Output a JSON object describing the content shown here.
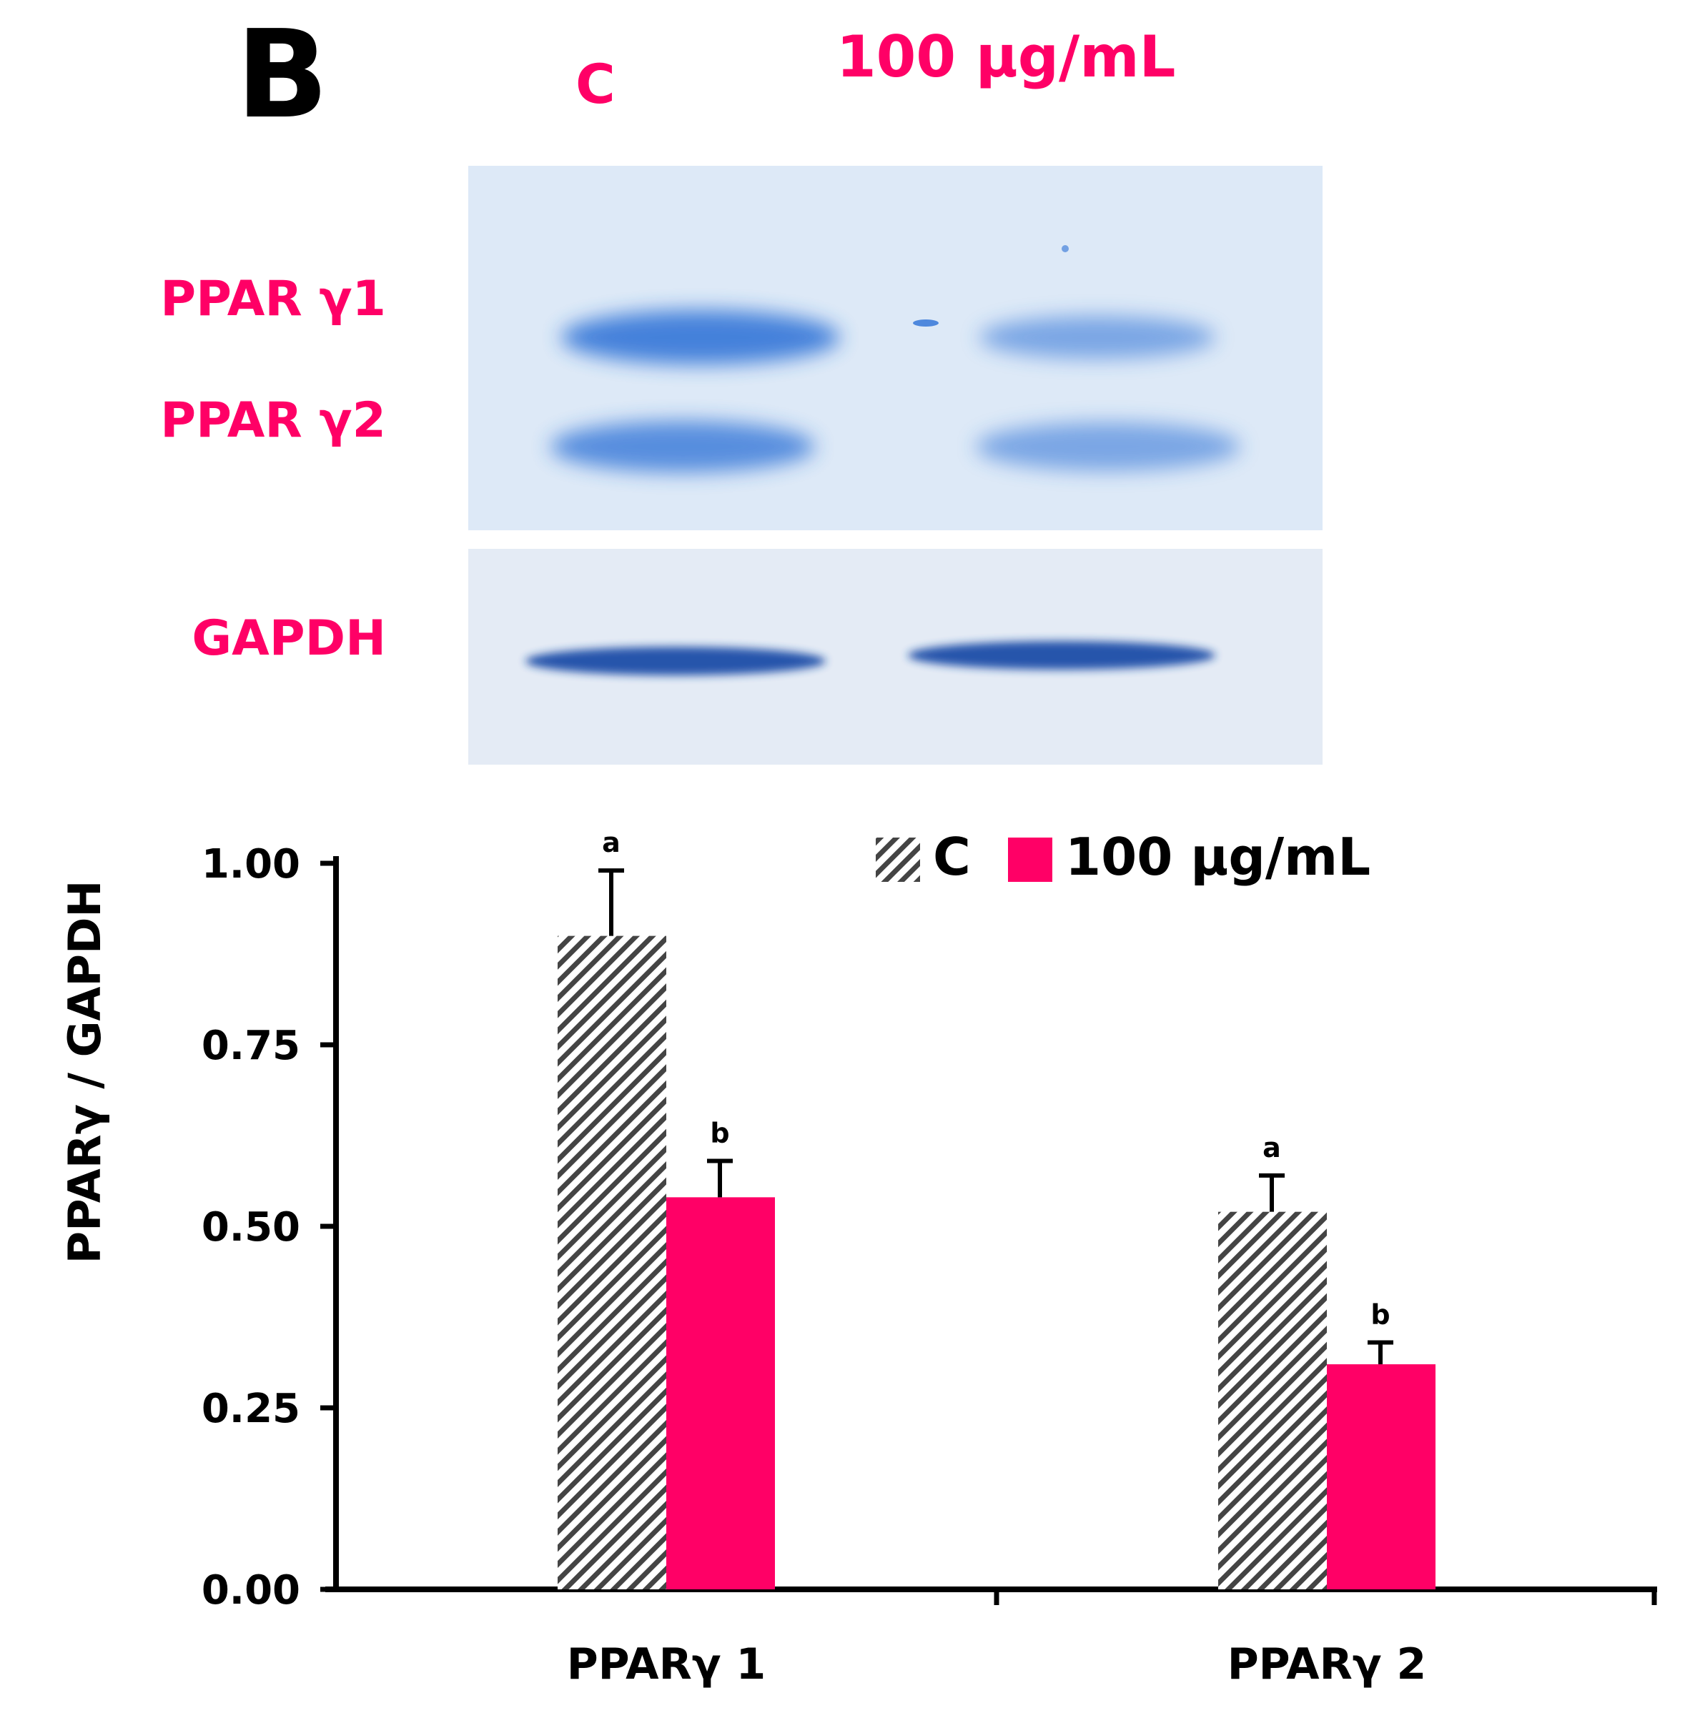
{
  "panel_label": "B",
  "blot": {
    "lane_labels": [
      "C",
      "100 μg/mL"
    ],
    "band_labels": [
      "PPAR γ1",
      "PPAR γ2"
    ],
    "loading_control_label": "GAPDH"
  },
  "colors": {
    "accent": "#ff0066",
    "control_hatch": "#444444",
    "blot_background": "#dde9f7",
    "blot_band": "#2b6fd6",
    "gapdh_band": "#1e4ea8"
  },
  "chart_data": {
    "type": "bar",
    "categories": [
      "PPARγ 1",
      "PPARγ 2"
    ],
    "series": [
      {
        "name": "C",
        "values": [
          0.9,
          0.52
        ],
        "errors": [
          0.09,
          0.05
        ],
        "letters": [
          "a",
          "a"
        ],
        "fill": "hatched"
      },
      {
        "name": "100 μg/mL",
        "values": [
          0.54,
          0.31
        ],
        "errors": [
          0.05,
          0.03
        ],
        "letters": [
          "b",
          "b"
        ],
        "fill": "#ff0066"
      }
    ],
    "ylabel": "PPARγ / GAPDH",
    "xlabel": "",
    "ylim": [
      0,
      1
    ],
    "yticks": [
      "0.00",
      "0.25",
      "0.50",
      "0.75",
      "1.00"
    ],
    "grid": false,
    "legend_position": "top-right"
  }
}
